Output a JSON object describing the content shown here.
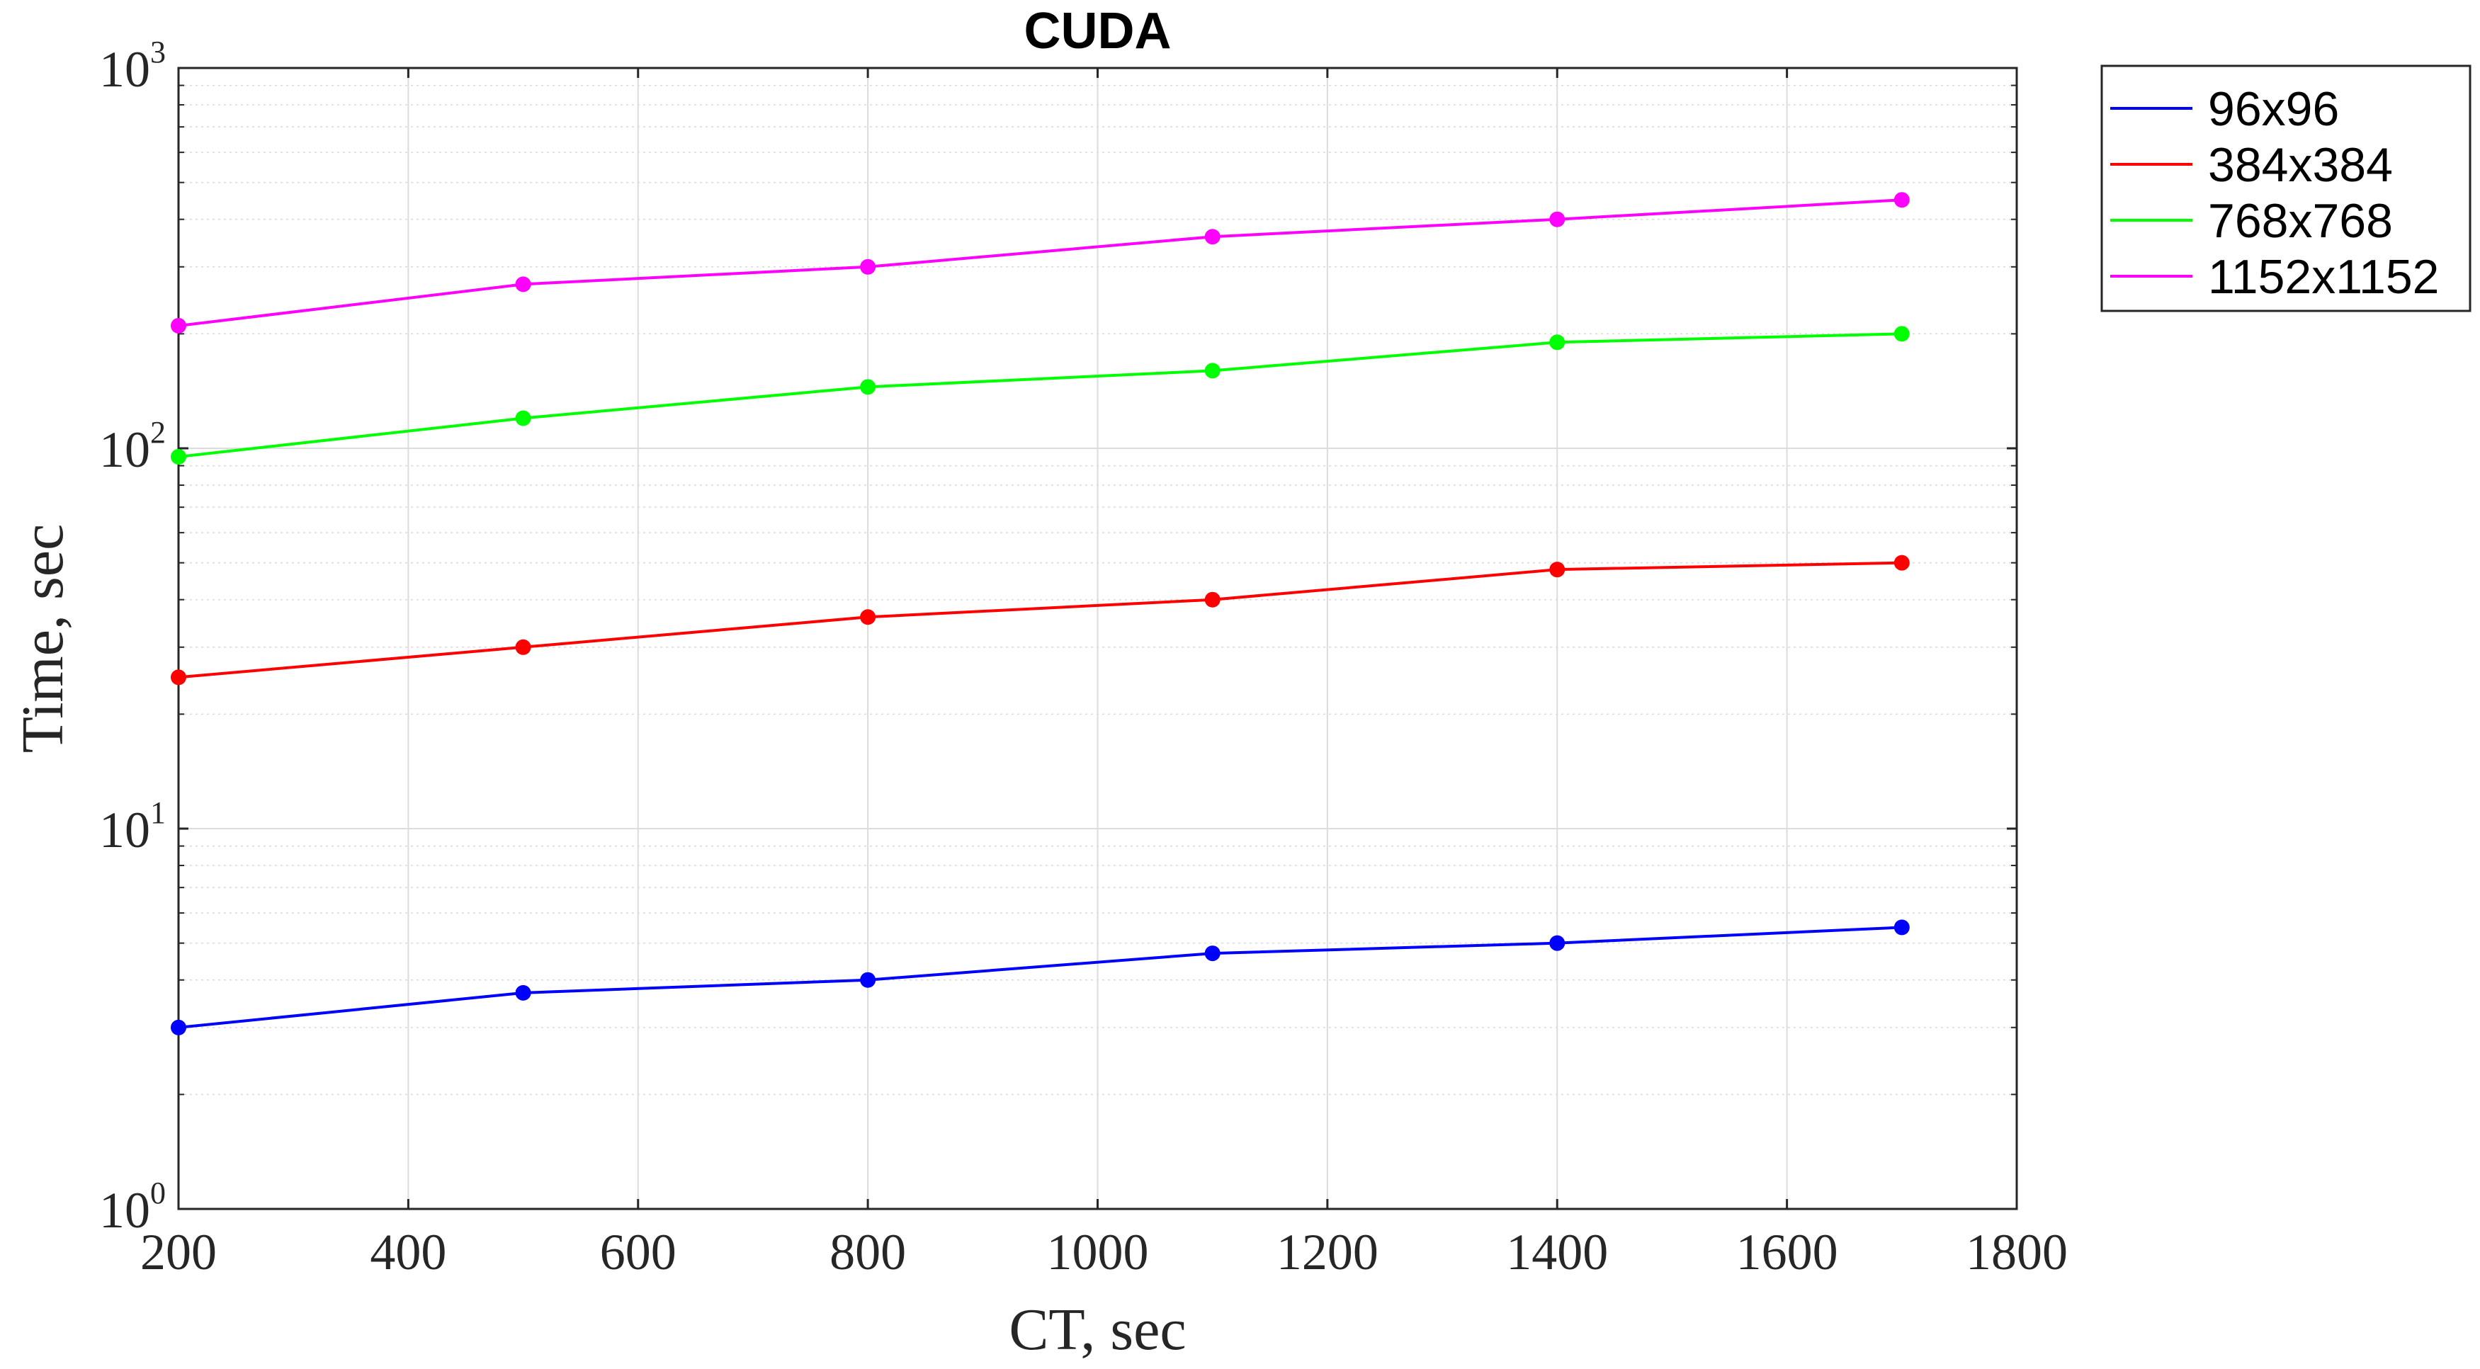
{
  "chart_data": {
    "type": "line",
    "title": "CUDA",
    "xlabel": "CT, sec",
    "ylabel": "Time, sec",
    "x_scale": "linear",
    "y_scale": "log",
    "xlim": [
      200,
      1800
    ],
    "ylim": [
      1,
      1000
    ],
    "x_ticks": [
      200,
      400,
      600,
      800,
      1000,
      1200,
      1400,
      1600,
      1800
    ],
    "x_tick_labels": [
      "200",
      "400",
      "600",
      "800",
      "1000",
      "1200",
      "1400",
      "1600",
      "1800"
    ],
    "y_ticks": [
      {
        "value": 1,
        "base": "10",
        "exp": "0"
      },
      {
        "value": 10,
        "base": "10",
        "exp": "1"
      },
      {
        "value": 100,
        "base": "10",
        "exp": "2"
      },
      {
        "value": 1000,
        "base": "10",
        "exp": "3"
      }
    ],
    "grid": true,
    "minor_grid": true,
    "legend_position": "outside top-right",
    "markers": "filled circles",
    "x": [
      200,
      500,
      800,
      1100,
      1400,
      1700
    ],
    "series": [
      {
        "name": "96x96",
        "color": "#0000ff",
        "values": [
          3.0,
          3.7,
          4.0,
          4.7,
          5.0,
          5.5
        ]
      },
      {
        "name": "384x384",
        "color": "#ff0000",
        "values": [
          25,
          30,
          36,
          40,
          48,
          50
        ]
      },
      {
        "name": "768x768",
        "color": "#00ff00",
        "values": [
          95,
          120,
          145,
          160,
          190,
          200
        ]
      },
      {
        "name": "1152x1152",
        "color": "#ff00ff",
        "values": [
          210,
          270,
          300,
          360,
          400,
          450
        ]
      }
    ]
  }
}
